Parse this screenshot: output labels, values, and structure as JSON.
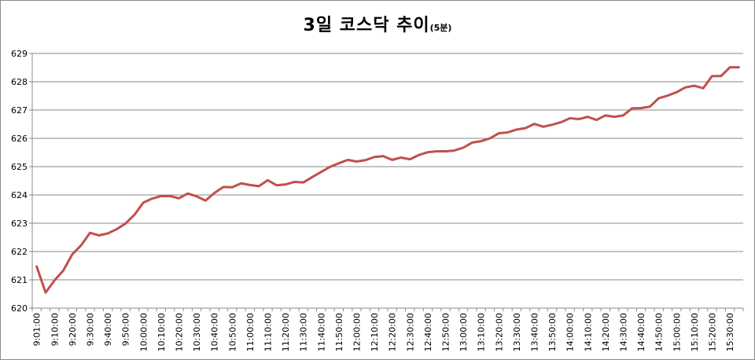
{
  "chart_data": {
    "type": "line",
    "title_main": "3일 코스닥 추이",
    "title_sub": "(5분)",
    "ylim": [
      620,
      629
    ],
    "yticks": [
      "620",
      "621",
      "622",
      "623",
      "624",
      "625",
      "626",
      "627",
      "628",
      "629"
    ],
    "grid": true,
    "line_color": "#c0504d",
    "x": [
      "9:01:00",
      "9:05:00",
      "9:10:00",
      "9:15:00",
      "9:20:00",
      "9:25:00",
      "9:30:00",
      "9:35:00",
      "9:40:00",
      "9:45:00",
      "9:50:00",
      "9:55:00",
      "10:00:00",
      "10:05:00",
      "10:10:00",
      "10:15:00",
      "10:20:00",
      "10:25:00",
      "10:30:00",
      "10:35:00",
      "10:40:00",
      "10:45:00",
      "10:50:00",
      "10:55:00",
      "11:00:00",
      "11:05:00",
      "11:10:00",
      "11:15:00",
      "11:20:00",
      "11:25:00",
      "11:30:00",
      "11:35:00",
      "11:40:00",
      "11:45:00",
      "11:50:00",
      "11:55:00",
      "12:00:00",
      "12:05:00",
      "12:10:00",
      "12:15:00",
      "12:20:00",
      "12:25:00",
      "12:30:00",
      "12:35:00",
      "12:40:00",
      "12:45:00",
      "12:50:00",
      "12:55:00",
      "13:00:00",
      "13:05:00",
      "13:10:00",
      "13:15:00",
      "13:20:00",
      "13:25:00",
      "13:30:00",
      "13:35:00",
      "13:40:00",
      "13:45:00",
      "13:50:00",
      "13:55:00",
      "14:00:00",
      "14:05:00",
      "14:10:00",
      "14:15:00",
      "14:20:00",
      "14:25:00",
      "14:30:00",
      "14:35:00",
      "14:40:00",
      "14:45:00",
      "14:50:00",
      "14:55:00",
      "15:00:00",
      "15:05:00",
      "15:10:00",
      "15:15:00",
      "15:20:00",
      "15:25:00",
      "15:30:00",
      "15:35:00"
    ],
    "x_labels_shown": [
      "9:01:00",
      "9:10:00",
      "9:20:00",
      "9:30:00",
      "9:40:00",
      "9:50:00",
      "10:00:00",
      "10:10:00",
      "10:20:00",
      "10:30:00",
      "10:40:00",
      "10:50:00",
      "11:00:00",
      "11:10:00",
      "11:20:00",
      "11:30:00",
      "11:40:00",
      "11:50:00",
      "12:00:00",
      "12:10:00",
      "12:20:00",
      "12:30:00",
      "12:40:00",
      "12:50:00",
      "13:00:00",
      "13:10:00",
      "13:20:00",
      "13:30:00",
      "13:40:00",
      "13:50:00",
      "14:00:00",
      "14:10:00",
      "14:20:00",
      "14:30:00",
      "14:40:00",
      "14:50:00",
      "15:00:00",
      "15:10:00",
      "15:20:00",
      "15:30:00"
    ],
    "values": [
      621.47,
      620.55,
      620.98,
      621.33,
      621.9,
      622.22,
      622.66,
      622.57,
      622.64,
      622.79,
      622.99,
      623.3,
      623.73,
      623.87,
      623.96,
      623.96,
      623.88,
      624.05,
      623.95,
      623.8,
      624.07,
      624.28,
      624.27,
      624.41,
      624.35,
      624.31,
      624.52,
      624.34,
      624.37,
      624.46,
      624.44,
      624.63,
      624.81,
      624.99,
      625.12,
      625.24,
      625.18,
      625.23,
      625.34,
      625.37,
      625.24,
      625.32,
      625.26,
      625.41,
      625.51,
      625.54,
      625.54,
      625.57,
      625.67,
      625.85,
      625.9,
      626.0,
      626.18,
      626.21,
      626.31,
      626.36,
      626.51,
      626.41,
      626.48,
      626.57,
      626.71,
      626.68,
      626.76,
      626.65,
      626.81,
      626.76,
      626.81,
      627.06,
      627.07,
      627.12,
      627.42,
      627.51,
      627.63,
      627.8,
      627.86,
      627.77,
      628.2,
      628.2,
      628.51,
      628.51
    ]
  }
}
